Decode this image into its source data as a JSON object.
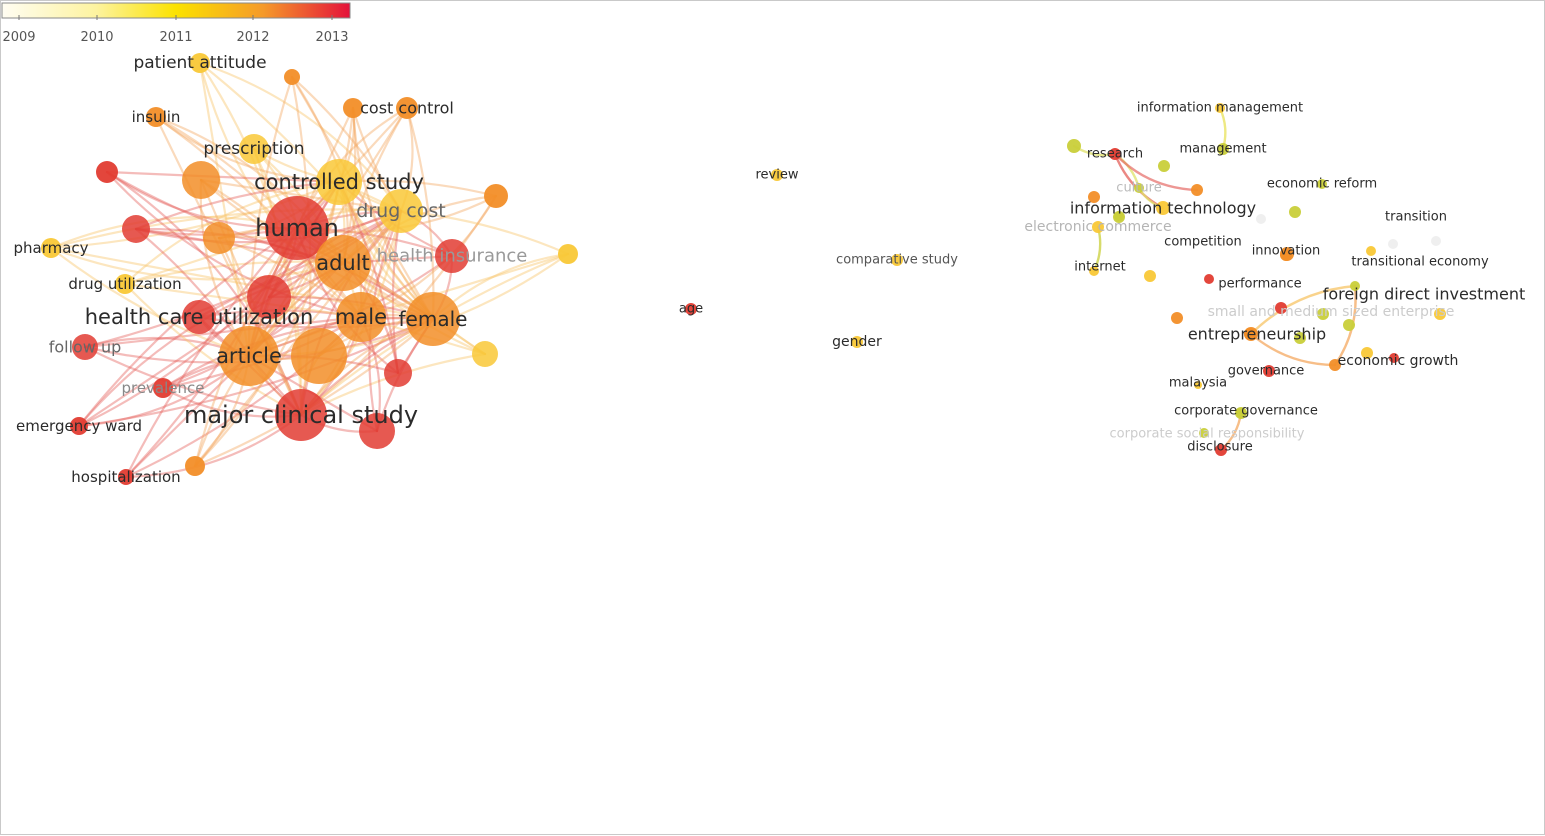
{
  "network": {
    "nodes": [
      {
        "id": "human",
        "label": "human",
        "color": "#e23c32",
        "r": 32,
        "label_color": "#2b2b2b"
      },
      {
        "id": "article",
        "label": "article",
        "color": "#f28e28",
        "r": 30,
        "label_color": "#2b2b2b"
      },
      {
        "id": "major-clinical-study",
        "label": "major clinical study",
        "color": "#e23c32",
        "r": 26,
        "label_color": "#2b2b2b"
      },
      {
        "id": "adult",
        "label": "adult",
        "color": "#f28e28",
        "r": 28,
        "label_color": "#2b2b2b"
      },
      {
        "id": "female",
        "label": "female",
        "color": "#f28e28",
        "r": 27,
        "label_color": "#2b2b2b"
      },
      {
        "id": "male",
        "label": "male",
        "color": "#f28e28",
        "r": 25,
        "label_color": "#2b2b2b"
      },
      {
        "id": "controlled-study",
        "label": "controlled study",
        "color": "#f9c837",
        "r": 23,
        "label_color": "#2b2b2b"
      },
      {
        "id": "drug-cost",
        "label": "drug cost",
        "color": "#f9c837",
        "r": 22,
        "label_color": "#666666"
      },
      {
        "id": "health-care-utilization",
        "label": "health care utilization",
        "color": "#e23c32",
        "r": 17,
        "label_color": "#2b2b2b"
      },
      {
        "id": "health-insurance",
        "label": "health insurance",
        "color": "#e23c32",
        "r": 17,
        "label_color": "#999999"
      },
      {
        "id": "prescription",
        "label": "prescription",
        "color": "#f9c837",
        "r": 15,
        "label_color": "#2b2b2b"
      },
      {
        "id": "follow-up",
        "label": "follow up",
        "color": "#e23c32",
        "r": 13,
        "label_color": "#666666"
      },
      {
        "id": "cost-control",
        "label": "cost control",
        "color": "#f28e28",
        "r": 11,
        "label_color": "#2b2b2b"
      },
      {
        "id": "insulin",
        "label": "insulin",
        "color": "#f28e28",
        "r": 10,
        "label_color": "#2b2b2b"
      },
      {
        "id": "prevalence",
        "label": "prevalence",
        "color": "#e23c32",
        "r": 10,
        "label_color": "#888888"
      },
      {
        "id": "pharmacy",
        "label": "pharmacy",
        "color": "#f9c837",
        "r": 10,
        "label_color": "#2b2b2b"
      },
      {
        "id": "drug-utilization",
        "label": "drug utilization",
        "color": "#f9c837",
        "r": 10,
        "label_color": "#2b2b2b"
      },
      {
        "id": "patient-attitude",
        "label": "patient attitude",
        "color": "#f9c837",
        "r": 10,
        "label_color": "#2b2b2b"
      },
      {
        "id": "emergency-ward",
        "label": "emergency ward",
        "color": "#e23c32",
        "r": 9,
        "label_color": "#2b2b2b"
      },
      {
        "id": "hospitalization",
        "label": "hospitalization",
        "color": "#e23c32",
        "r": 8,
        "label_color": "#2b2b2b"
      },
      {
        "id": "review",
        "label": "review",
        "color": "#f9c837",
        "r": 6,
        "label_color": "#2b2b2b"
      },
      {
        "id": "comparative-study",
        "label": "comparative study",
        "color": "#f9c837",
        "r": 6,
        "label_color": "#555555"
      },
      {
        "id": "age",
        "label": "age",
        "color": "#e23c32",
        "r": 6,
        "label_color": "#2b2b2b"
      },
      {
        "id": "gender",
        "label": "gender",
        "color": "#f9c837",
        "r": 6,
        "label_color": "#2b2b2b"
      },
      {
        "id": "information-management",
        "label": "information management",
        "color": "#f9c837",
        "r": 5,
        "label_color": "#2b2b2b"
      },
      {
        "id": "research",
        "label": "research",
        "color": "#e23c32",
        "r": 6,
        "label_color": "#2b2b2b"
      },
      {
        "id": "management",
        "label": "management",
        "color": "#c9cf3a",
        "r": 6,
        "label_color": "#2b2b2b"
      },
      {
        "id": "culture",
        "label": "culture",
        "color": "#c9cf3a",
        "r": 5,
        "label_color": "#bbbbbb"
      },
      {
        "id": "economic-reform",
        "label": "economic reform",
        "color": "#c9cf3a",
        "r": 5,
        "label_color": "#2b2b2b"
      },
      {
        "id": "information-technology",
        "label": "information technology",
        "color": "#f9c837",
        "r": 7,
        "label_color": "#2b2b2b"
      },
      {
        "id": "transition",
        "label": "transition",
        "color": "#eeeeee",
        "r": 5,
        "label_color": "#2b2b2b"
      },
      {
        "id": "electronic-commerce",
        "label": "electronic commerce",
        "color": "#f9c837",
        "r": 6,
        "label_color": "#b5b5b5"
      },
      {
        "id": "competition",
        "label": "competition",
        "color": "#c9cf3a",
        "r": 5,
        "label_color": "#2b2b2b"
      },
      {
        "id": "innovation",
        "label": "innovation",
        "color": "#f28e28",
        "r": 6,
        "label_color": "#2b2b2b"
      },
      {
        "id": "transitional-economy",
        "label": "transitional economy",
        "color": "#f9c837",
        "r": 5,
        "label_color": "#2b2b2b"
      },
      {
        "id": "internet",
        "label": "internet",
        "color": "#f9c837",
        "r": 5,
        "label_color": "#2b2b2b"
      },
      {
        "id": "performance",
        "label": "performance",
        "color": "#e23c32",
        "r": 5,
        "label_color": "#2b2b2b"
      },
      {
        "id": "foreign-direct-investment",
        "label": "foreign direct investment",
        "color": "#c9cf3a",
        "r": 5,
        "label_color": "#2b2b2b"
      },
      {
        "id": "small-and-medium-sized-enterprise",
        "label": "small and medium sized enterprise",
        "color": "#f28e28",
        "r": 6,
        "label_color": "#cccccc"
      },
      {
        "id": "entrepreneurship",
        "label": "entrepreneurship",
        "color": "#f28e28",
        "r": 7,
        "label_color": "#2b2b2b"
      },
      {
        "id": "economic-growth",
        "label": "economic growth",
        "color": "#f28e28",
        "r": 6,
        "label_color": "#2b2b2b"
      },
      {
        "id": "governance",
        "label": "governance",
        "color": "#e23c32",
        "r": 6,
        "label_color": "#2b2b2b"
      },
      {
        "id": "malaysia",
        "label": "malaysia",
        "color": "#f9c837",
        "r": 4,
        "label_color": "#2b2b2b"
      },
      {
        "id": "corporate-governance",
        "label": "corporate governance",
        "color": "#c9cf3a",
        "r": 5,
        "label_color": "#2b2b2b"
      },
      {
        "id": "corporate-social-responsibility",
        "label": "corporate social responsibility",
        "color": "#c9cf3a",
        "r": 5,
        "label_color": "#cccccc"
      },
      {
        "id": "disclosure",
        "label": "disclosure",
        "color": "#e23c32",
        "r": 6,
        "label_color": "#2b2b2b"
      }
    ],
    "unlabeled_nodes": [
      {
        "color": "#f28e28",
        "r": 8
      },
      {
        "color": "#f28e28",
        "r": 10
      },
      {
        "color": "#e23c32",
        "r": 11
      },
      {
        "color": "#f28e28",
        "r": 19
      },
      {
        "color": "#e23c32",
        "r": 14
      },
      {
        "color": "#f28e28",
        "r": 12
      },
      {
        "color": "#f9c837",
        "r": 10
      },
      {
        "color": "#e23c32",
        "r": 22
      },
      {
        "color": "#f28e28",
        "r": 16
      },
      {
        "color": "#f28e28",
        "r": 28
      },
      {
        "color": "#e23c32",
        "r": 14
      },
      {
        "color": "#f9c837",
        "r": 13
      },
      {
        "color": "#e23c32",
        "r": 18
      },
      {
        "color": "#f28e28",
        "r": 10
      },
      {
        "color": "#c9cf3a",
        "r": 7
      },
      {
        "color": "#c9cf3a",
        "r": 6
      },
      {
        "color": "#f28e28",
        "r": 6
      },
      {
        "color": "#c9cf3a",
        "r": 6
      },
      {
        "color": "#f28e28",
        "r": 6
      },
      {
        "color": "#f9c837",
        "r": 6
      },
      {
        "color": "#e23c32",
        "r": 6
      },
      {
        "color": "#f28e28",
        "r": 7
      },
      {
        "color": "#f28e28",
        "r": 6
      },
      {
        "color": "#c9cf3a",
        "r": 6
      },
      {
        "color": "#c9cf3a",
        "r": 6
      },
      {
        "color": "#c9cf3a",
        "r": 6
      },
      {
        "color": "#f9c837",
        "r": 6
      },
      {
        "color": "#f9c837",
        "r": 6
      },
      {
        "color": "#e23c32",
        "r": 5
      },
      {
        "color": "#eeeeee",
        "r": 5
      },
      {
        "color": "#eeeeee",
        "r": 5
      },
      {
        "color": "#c9cf3a",
        "r": 6
      },
      {
        "color": "#c9cf3a",
        "r": 6
      }
    ]
  },
  "legend": {
    "ticks": [
      "2009",
      "2010",
      "2011",
      "2012",
      "2013"
    ],
    "gradient": [
      "#fffdf2",
      "#fdf3a0",
      "#fbe200",
      "#f59a2a",
      "#e4123a"
    ]
  }
}
